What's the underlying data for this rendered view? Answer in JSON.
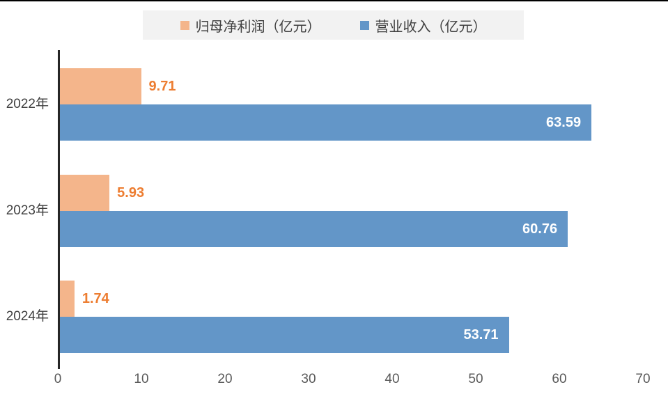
{
  "chart_data": {
    "type": "bar",
    "orientation": "horizontal",
    "title": "",
    "categories": [
      "2022年",
      "2023年",
      "2024年"
    ],
    "series": [
      {
        "name": "归母净利润（亿元）",
        "values": [
          9.71,
          5.93,
          1.74
        ],
        "data_labels": [
          "9.71",
          "5.93",
          "1.74"
        ],
        "color": "#F4B58B",
        "label_color": "#ED7D31",
        "label_placement": "outside-end"
      },
      {
        "name": "营业收入（亿元）",
        "values": [
          63.59,
          60.76,
          53.71
        ],
        "data_labels": [
          "63.59",
          "60.76",
          "53.71"
        ],
        "color": "#6396C8",
        "label_color": "#FFFFFF",
        "label_placement": "inside-end"
      }
    ],
    "x_ticks": [
      "0",
      "10",
      "20",
      "30",
      "40",
      "50",
      "60",
      "70"
    ],
    "x_tick_values": [
      0,
      10,
      20,
      30,
      40,
      50,
      60,
      70
    ],
    "xlim": [
      0,
      70
    ],
    "grid": false,
    "legend_position": "top",
    "legend_background": "#F2F2F2",
    "colors": {
      "axis_line": "#262626",
      "tick_label": "#595959",
      "category_label": "#404040",
      "legend_text": "#404040",
      "top_border": "#000000",
      "background": "#FFFFFF"
    }
  }
}
